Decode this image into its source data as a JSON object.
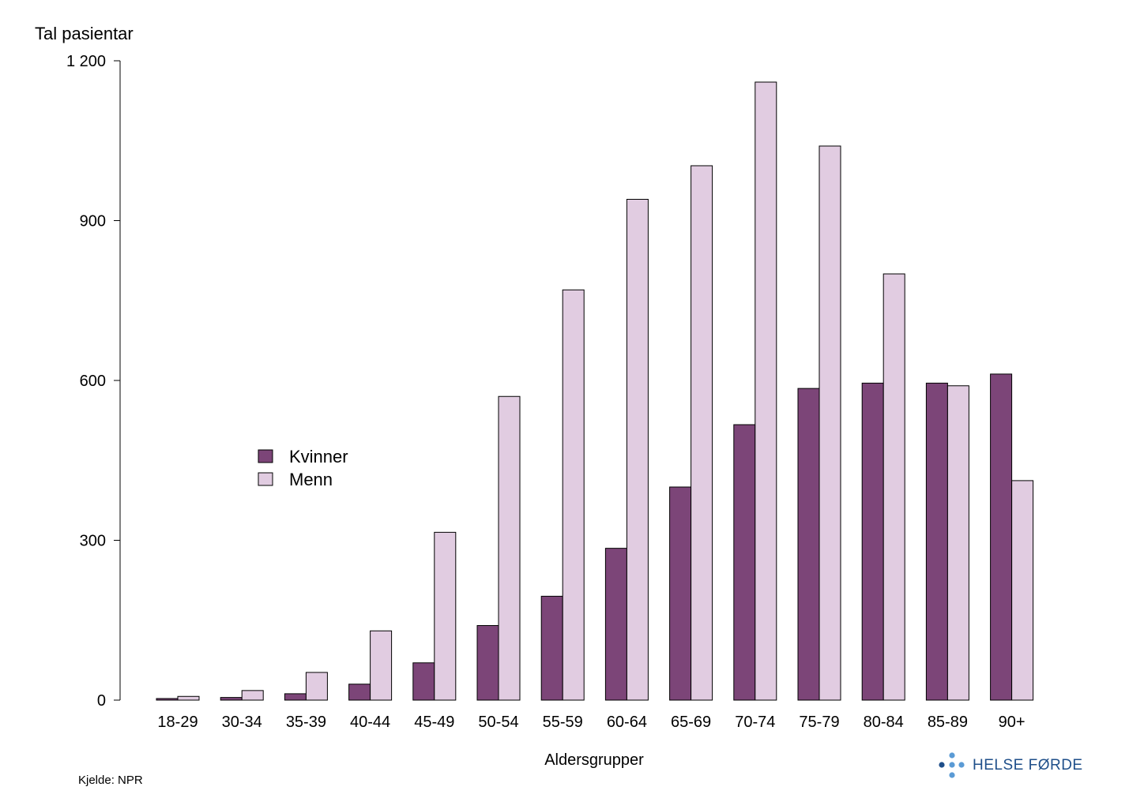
{
  "chart_data": {
    "type": "bar",
    "ylabel": "Tal pasientar",
    "xlabel": "Aldersgrupper",
    "ylim": [
      0,
      1200
    ],
    "yticks": [
      0,
      300,
      600,
      900,
      1200
    ],
    "ytick_labels": [
      "0",
      "300",
      "600",
      "900",
      "1 200"
    ],
    "categories": [
      "18-29",
      "30-34",
      "35-39",
      "40-44",
      "45-49",
      "50-54",
      "55-59",
      "60-64",
      "65-69",
      "70-74",
      "75-79",
      "80-84",
      "85-89",
      "90+"
    ],
    "series": [
      {
        "name": "Kvinner",
        "color": "#7c4578",
        "values": [
          3,
          5,
          12,
          30,
          70,
          140,
          195,
          285,
          400,
          517,
          585,
          595,
          595,
          612
        ]
      },
      {
        "name": "Menn",
        "color": "#e1cce1",
        "values": [
          7,
          18,
          52,
          130,
          315,
          570,
          770,
          940,
          1003,
          1160,
          1040,
          800,
          590,
          412
        ]
      }
    ],
    "legend_position": "middle-left",
    "grid": false
  },
  "source": "Kjelde: NPR",
  "logo": {
    "text": "HELSE FØRDE",
    "color": "#1f4f8a",
    "dots_color": "#5b9bd5"
  }
}
